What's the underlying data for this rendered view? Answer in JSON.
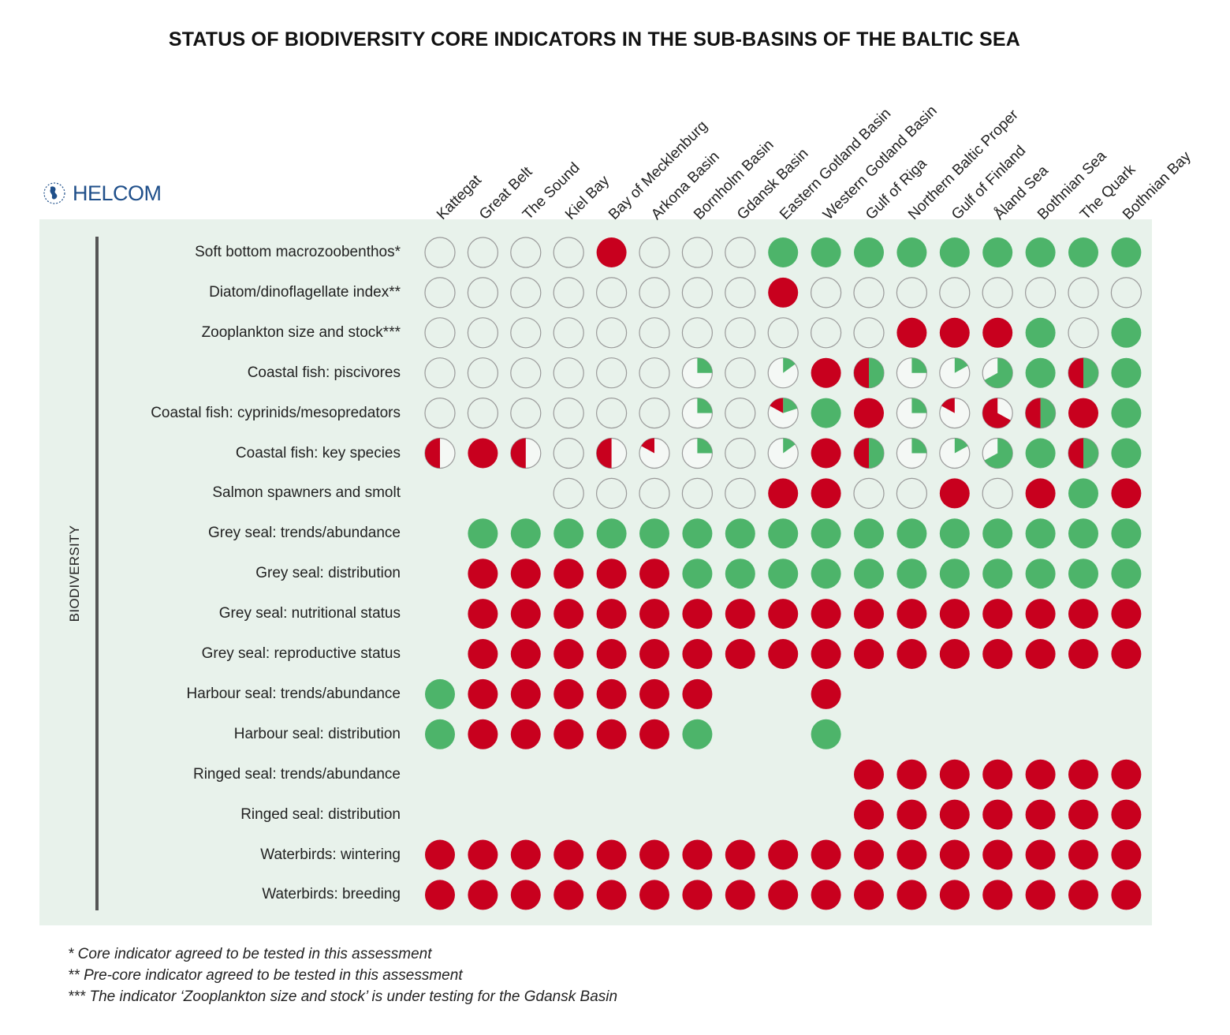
{
  "title": "STATUS OF BIODIVERSITY CORE INDICATORS IN THE SUB-BASINS OF THE BALTIC SEA",
  "logo": {
    "text": "HELCOM",
    "icon": "helcom-baltic-logo-icon",
    "color": "#1f4f8a"
  },
  "category": "BIODIVERSITY",
  "colors": {
    "good": "#4db46a",
    "bad": "#c8001e",
    "unknown_fill": "#e8f2eb",
    "unknown_stroke": "#9a9a9a",
    "panel": "#e8f2eb"
  },
  "chart_data": {
    "type": "table",
    "title": "STATUS OF BIODIVERSITY CORE INDICATORS IN THE SUB-BASINS OF THE BALTIC SEA",
    "encoding": "G = good status (green), B = not good status (red), U = not assessed (open circle), null = blank; pie cells give green fraction 'g' and red fraction 'r' (remainder unfilled)",
    "basins": [
      "Kattegat",
      "Great Belt",
      "The Sound",
      "Kiel Bay",
      "Bay of Mecklenburg",
      "Arkona Basin",
      "Bornholm Basin",
      "Gdansk Basin",
      "Eastern Gotland Basin",
      "Western Gotland Basin",
      "Gulf of Riga",
      "Northern Baltic Proper",
      "Gulf of Finland",
      "Åland Sea",
      "Bothnian Sea",
      "The Quark",
      "Bothnian Bay"
    ],
    "indicators": [
      {
        "name": "Soft bottom macrozoobenthos*",
        "status": [
          "U",
          "U",
          "U",
          "U",
          "B",
          "U",
          "U",
          "U",
          "G",
          "G",
          "G",
          "G",
          "G",
          "G",
          "G",
          "G",
          "G"
        ]
      },
      {
        "name": "Diatom/dinoflagellate index**",
        "status": [
          "U",
          "U",
          "U",
          "U",
          "U",
          "U",
          "U",
          "U",
          "B",
          "U",
          "U",
          "U",
          "U",
          "U",
          "U",
          "U",
          "U"
        ]
      },
      {
        "name": "Zooplankton size and stock***",
        "status": [
          "U",
          "U",
          "U",
          "U",
          "U",
          "U",
          "U",
          "U",
          "U",
          "U",
          "U",
          "B",
          "B",
          "B",
          "G",
          "U",
          "G"
        ]
      },
      {
        "name": "Coastal fish: piscivores",
        "status": [
          "U",
          "U",
          "U",
          "U",
          "U",
          "U",
          {
            "g": 0.25,
            "r": 0
          },
          "U",
          {
            "g": 0.15,
            "r": 0
          },
          "B",
          {
            "g": 0.5,
            "r": 0.5
          },
          {
            "g": 0.25,
            "r": 0
          },
          {
            "g": 0.17,
            "r": 0
          },
          {
            "g": 0.67,
            "r": 0
          },
          "G",
          {
            "g": 0.5,
            "r": 0.5
          },
          "G"
        ]
      },
      {
        "name": "Coastal fish: cyprinids/mesopredators",
        "status": [
          "U",
          "U",
          "U",
          "U",
          "U",
          "U",
          {
            "g": 0.25,
            "r": 0
          },
          "U",
          {
            "g": 0.2,
            "r": 0.17
          },
          "G",
          "B",
          {
            "g": 0.25,
            "r": 0
          },
          {
            "g": 0,
            "r": 0.17
          },
          {
            "g": 0,
            "r": 0.67
          },
          {
            "g": 0.5,
            "r": 0.5
          },
          "B",
          "G"
        ]
      },
      {
        "name": "Coastal fish: key species",
        "status": [
          {
            "g": 0,
            "r": 0.5
          },
          "B",
          {
            "g": 0,
            "r": 0.5
          },
          "U",
          {
            "g": 0,
            "r": 0.5
          },
          {
            "g": 0,
            "r": 0.17
          },
          {
            "g": 0.25,
            "r": 0
          },
          "U",
          {
            "g": 0.15,
            "r": 0
          },
          "B",
          {
            "g": 0.5,
            "r": 0.5
          },
          {
            "g": 0.25,
            "r": 0
          },
          {
            "g": 0.17,
            "r": 0
          },
          {
            "g": 0.67,
            "r": 0
          },
          "G",
          {
            "g": 0.5,
            "r": 0.5
          },
          "G"
        ]
      },
      {
        "name": "Salmon spawners and smolt",
        "status": [
          null,
          null,
          null,
          "U",
          "U",
          "U",
          "U",
          "U",
          "B",
          "B",
          "U",
          "U",
          "B",
          "U",
          "B",
          "G",
          "B"
        ]
      },
      {
        "name": "Grey seal: trends/abundance",
        "status": [
          null,
          "G",
          "G",
          "G",
          "G",
          "G",
          "G",
          "G",
          "G",
          "G",
          "G",
          "G",
          "G",
          "G",
          "G",
          "G",
          "G"
        ]
      },
      {
        "name": "Grey seal: distribution",
        "status": [
          null,
          "B",
          "B",
          "B",
          "B",
          "B",
          "G",
          "G",
          "G",
          "G",
          "G",
          "G",
          "G",
          "G",
          "G",
          "G",
          "G"
        ]
      },
      {
        "name": "Grey seal: nutritional status",
        "status": [
          null,
          "B",
          "B",
          "B",
          "B",
          "B",
          "B",
          "B",
          "B",
          "B",
          "B",
          "B",
          "B",
          "B",
          "B",
          "B",
          "B"
        ]
      },
      {
        "name": "Grey seal:  reproductive status",
        "status": [
          null,
          "B",
          "B",
          "B",
          "B",
          "B",
          "B",
          "B",
          "B",
          "B",
          "B",
          "B",
          "B",
          "B",
          "B",
          "B",
          "B"
        ]
      },
      {
        "name": "Harbour seal: trends/abundance",
        "status": [
          "G",
          "B",
          "B",
          "B",
          "B",
          "B",
          "B",
          null,
          null,
          "B",
          null,
          null,
          null,
          null,
          null,
          null,
          null
        ]
      },
      {
        "name": "Harbour seal: distribution",
        "status": [
          "G",
          "B",
          "B",
          "B",
          "B",
          "B",
          "G",
          null,
          null,
          "G",
          null,
          null,
          null,
          null,
          null,
          null,
          null
        ]
      },
      {
        "name": "Ringed seal: trends/abundance",
        "status": [
          null,
          null,
          null,
          null,
          null,
          null,
          null,
          null,
          null,
          null,
          "B",
          "B",
          "B",
          "B",
          "B",
          "B",
          "B"
        ]
      },
      {
        "name": "Ringed seal: distribution",
        "status": [
          null,
          null,
          null,
          null,
          null,
          null,
          null,
          null,
          null,
          null,
          "B",
          "B",
          "B",
          "B",
          "B",
          "B",
          "B"
        ]
      },
      {
        "name": "Waterbirds: wintering",
        "status": [
          "B",
          "B",
          "B",
          "B",
          "B",
          "B",
          "B",
          "B",
          "B",
          "B",
          "B",
          "B",
          "B",
          "B",
          "B",
          "B",
          "B"
        ]
      },
      {
        "name": "Waterbirds: breeding",
        "status": [
          "B",
          "B",
          "B",
          "B",
          "B",
          "B",
          "B",
          "B",
          "B",
          "B",
          "B",
          "B",
          "B",
          "B",
          "B",
          "B",
          "B"
        ]
      }
    ]
  },
  "notes": [
    "* Core indicator agreed to be tested in this assessment",
    "** Pre-core indicator agreed to be tested in this assessment",
    "*** The indicator ‘Zooplankton size and stock’ is under testing for the Gdansk Basin"
  ]
}
